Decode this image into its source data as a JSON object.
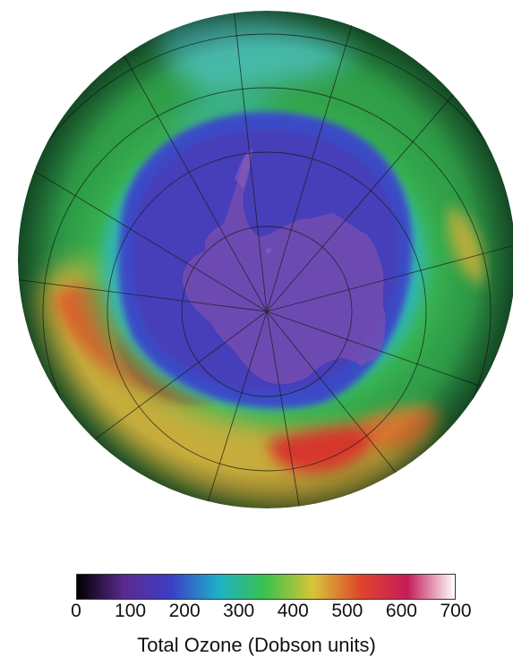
{
  "map": {
    "projection": "orthographic-south-polar",
    "features": [
      {
        "name": "antarctica",
        "fill_color": "#7a4fb0"
      },
      {
        "name": "ozone-hole",
        "fill_color": "#4b3cb8"
      }
    ],
    "grid": true
  },
  "colorbar": {
    "ticks": [
      "0",
      "100",
      "200",
      "300",
      "400",
      "500",
      "600",
      "700"
    ],
    "range": [
      0,
      700
    ],
    "colors": [
      "#000000",
      "#5b2a91",
      "#3b3fc4",
      "#1fb0c8",
      "#3cc24a",
      "#d8c53a",
      "#e0452a",
      "#c41c5a",
      "#ffffff"
    ],
    "title": "Total Ozone (Dobson units)"
  }
}
